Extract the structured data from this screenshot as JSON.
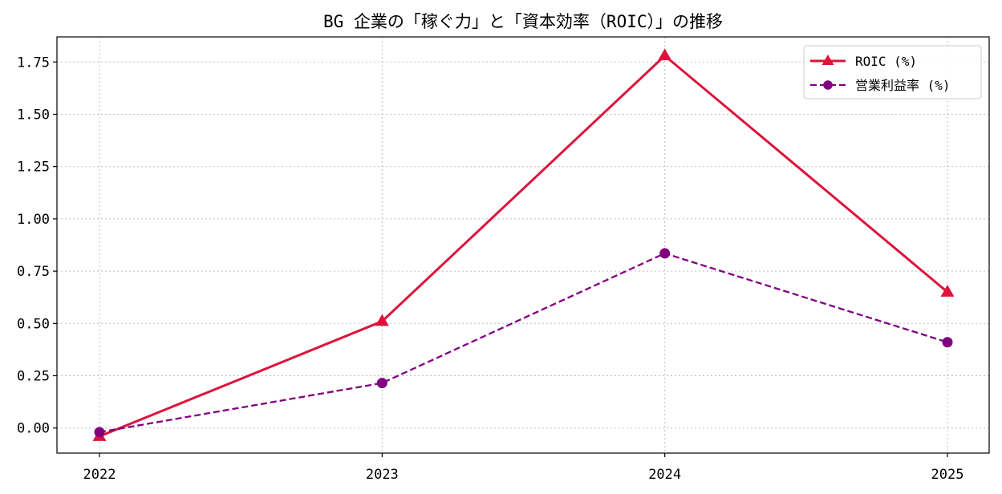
{
  "chart_data": {
    "type": "line",
    "title": "BG 企業の「稼ぐ力」と「資本効率（ROIC）」の推移",
    "xlabel": "",
    "ylabel": "",
    "categories": [
      "2022",
      "2023",
      "2024",
      "2025"
    ],
    "ylim": [
      -0.12,
      1.87
    ],
    "yticks": [
      0.0,
      0.25,
      0.5,
      0.75,
      1.0,
      1.25,
      1.5,
      1.75
    ],
    "ytick_labels": [
      "0.00",
      "0.25",
      "0.50",
      "0.75",
      "1.00",
      "1.25",
      "1.50",
      "1.75"
    ],
    "grid": true,
    "legend_position": "top-right",
    "series": [
      {
        "name": "ROIC (%)",
        "values": [
          -0.04,
          0.51,
          1.78,
          0.65
        ],
        "color": "#dc143c",
        "line_style": "solid",
        "marker": "triangle"
      },
      {
        "name": "営業利益率 (%)",
        "values": [
          -0.02,
          0.215,
          0.835,
          0.41
        ],
        "color": "#800080",
        "line_style": "dashed",
        "marker": "circle"
      }
    ]
  }
}
